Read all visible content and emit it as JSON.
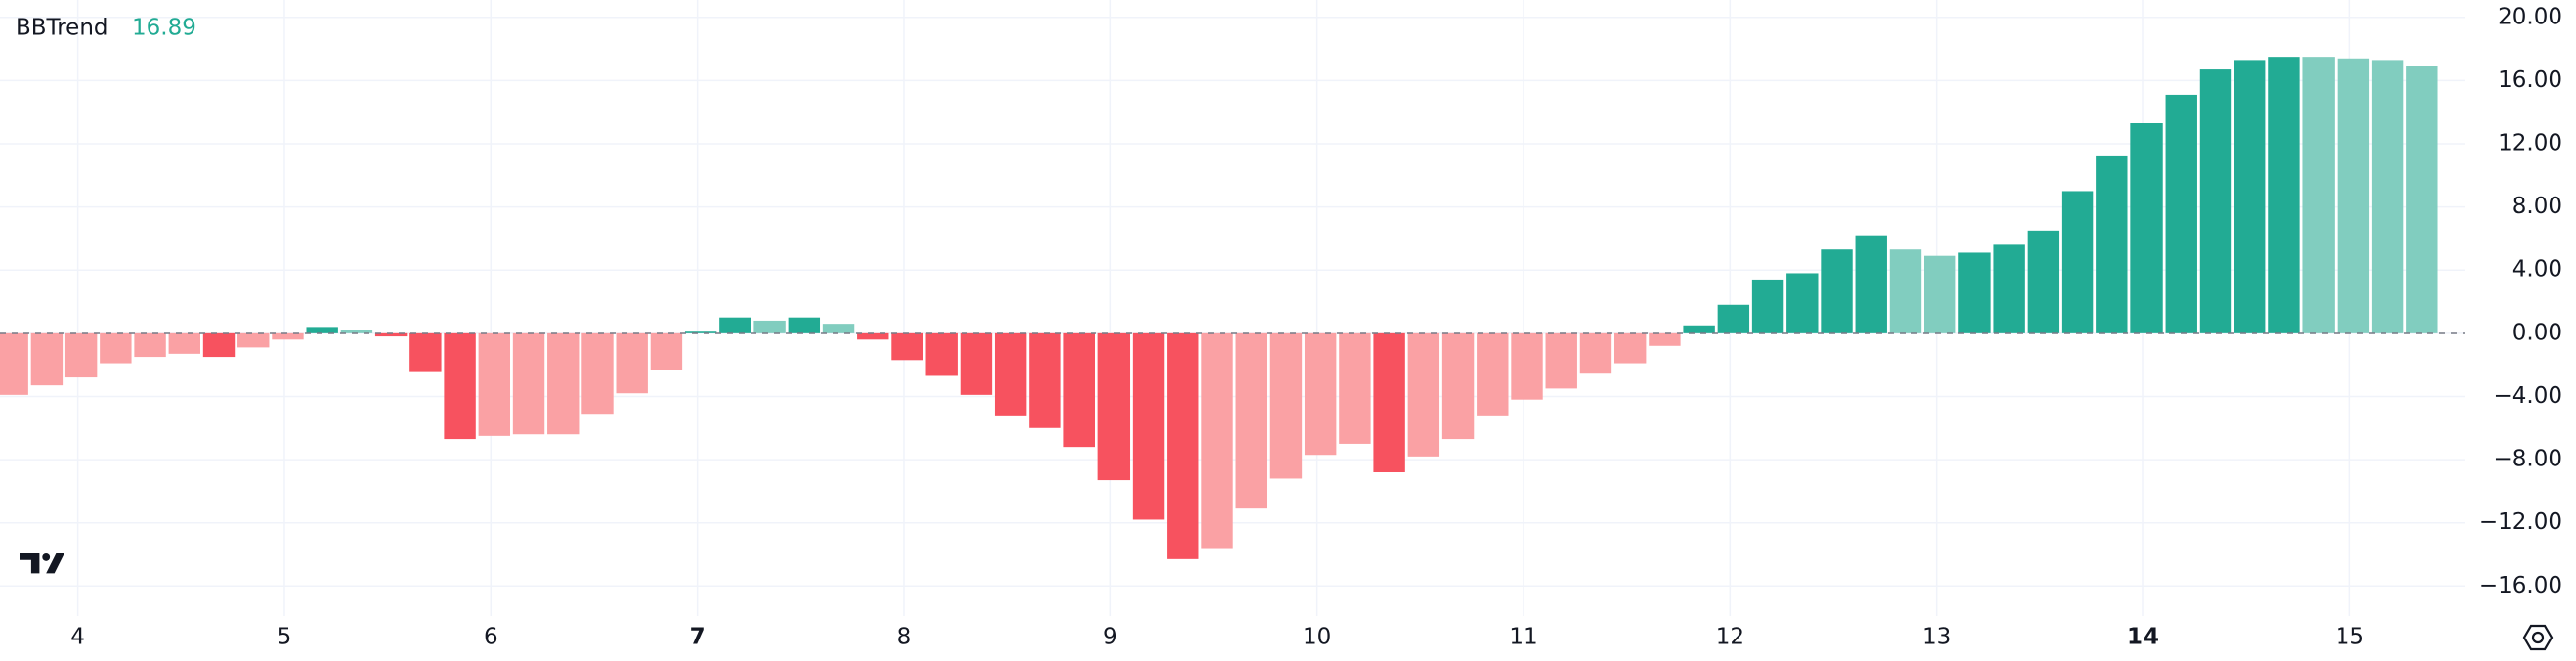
{
  "chart_data": {
    "type": "bar",
    "series": [
      {
        "name": "BBTrend",
        "values": [
          -3.9,
          -3.3,
          -2.8,
          -1.9,
          -1.5,
          -1.3,
          -1.5,
          -0.9,
          -0.4,
          0.4,
          0.2,
          -0.2,
          -2.4,
          -6.7,
          -6.5,
          -6.4,
          -6.4,
          -5.1,
          -3.8,
          -2.3,
          0.1,
          1.0,
          0.8,
          1.0,
          0.6,
          -0.4,
          -1.7,
          -2.7,
          -3.9,
          -5.2,
          -6.0,
          -7.2,
          -9.3,
          -11.8,
          -14.3,
          -13.6,
          -11.1,
          -9.2,
          -7.7,
          -7.0,
          -8.8,
          -7.8,
          -6.7,
          -5.2,
          -4.2,
          -3.5,
          -2.5,
          -1.9,
          -0.8,
          0.5,
          1.8,
          3.4,
          3.8,
          5.3,
          6.2,
          5.3,
          4.9,
          5.1,
          5.6,
          6.5,
          9.0,
          11.2,
          13.3,
          15.1,
          16.7,
          17.3,
          17.5,
          17.5,
          17.4,
          17.3,
          16.89
        ],
        "colors": [
          "#faa1a4",
          "#faa1a4",
          "#faa1a4",
          "#faa1a4",
          "#faa1a4",
          "#faa1a4",
          "#f7525f",
          "#faa1a4",
          "#faa1a4",
          "#22ab94",
          "#81cdbf",
          "#f7525f",
          "#f7525f",
          "#f7525f",
          "#faa1a4",
          "#faa1a4",
          "#faa1a4",
          "#faa1a4",
          "#faa1a4",
          "#faa1a4",
          "#22ab94",
          "#22ab94",
          "#81cdbf",
          "#22ab94",
          "#81cdbf",
          "#f7525f",
          "#f7525f",
          "#f7525f",
          "#f7525f",
          "#f7525f",
          "#f7525f",
          "#f7525f",
          "#f7525f",
          "#f7525f",
          "#f7525f",
          "#faa1a4",
          "#faa1a4",
          "#faa1a4",
          "#faa1a4",
          "#faa1a4",
          "#f7525f",
          "#faa1a4",
          "#faa1a4",
          "#faa1a4",
          "#faa1a4",
          "#faa1a4",
          "#faa1a4",
          "#faa1a4",
          "#faa1a4",
          "#22ab94",
          "#22ab94",
          "#22ab94",
          "#22ab94",
          "#22ab94",
          "#22ab94",
          "#81cdbf",
          "#81cdbf",
          "#22ab94",
          "#22ab94",
          "#22ab94",
          "#22ab94",
          "#22ab94",
          "#22ab94",
          "#22ab94",
          "#22ab94",
          "#22ab94",
          "#22ab94",
          "#81cdbf",
          "#81cdbf",
          "#81cdbf",
          "#81cdbf"
        ],
        "color": "#22ab94"
      }
    ],
    "xlim": [
      -0.36,
      71.24
    ],
    "ylim": [
      -17.9,
      21.1
    ],
    "xticks": [
      {
        "value": 1.9,
        "label": "4"
      },
      {
        "value": 7.9,
        "label": "5"
      },
      {
        "value": 13.9,
        "label": "6"
      },
      {
        "value": 19.9,
        "label": "7",
        "bold": true
      },
      {
        "value": 25.9,
        "label": "8"
      },
      {
        "value": 31.9,
        "label": "9"
      },
      {
        "value": 37.9,
        "label": "10"
      },
      {
        "value": 43.9,
        "label": "11"
      },
      {
        "value": 49.9,
        "label": "12"
      },
      {
        "value": 55.9,
        "label": "13"
      },
      {
        "value": 61.9,
        "label": "14",
        "bold": true
      },
      {
        "value": 67.9,
        "label": "15"
      }
    ],
    "yticks": [
      {
        "value": 20,
        "label": "20.00"
      },
      {
        "value": 16,
        "label": "16.00"
      },
      {
        "value": 12,
        "label": "12.00"
      },
      {
        "value": 8,
        "label": "8.00"
      },
      {
        "value": 4,
        "label": "4.00"
      },
      {
        "value": 0,
        "label": "0.00"
      },
      {
        "value": -4,
        "label": "−4.00"
      },
      {
        "value": -8,
        "label": "−8.00"
      },
      {
        "value": -12,
        "label": "−12.00"
      },
      {
        "value": -16,
        "label": "−16.00"
      }
    ],
    "grid": true
  }
}
